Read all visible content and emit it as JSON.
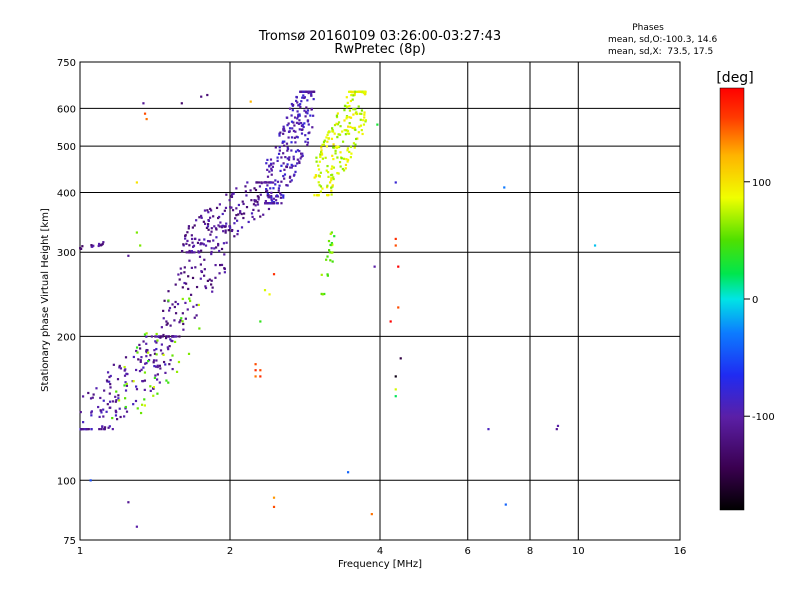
{
  "header": {
    "title_line1": "Tromsø 20160109 03:26:00-03:27:43",
    "title_line2": "RwPretec (8p)"
  },
  "stats": {
    "heading": "Phases",
    "line_o": "mean, sd,O:-100.3, 14.6",
    "line_x": "mean, sd,X:  73.5, 17.5"
  },
  "colorbar": {
    "unit_label": "[deg]",
    "ticks": [
      {
        "value": 100,
        "label": "100"
      },
      {
        "value": 0,
        "label": "0"
      },
      {
        "value": -100,
        "label": "-100"
      }
    ],
    "range": [
      -180,
      180
    ]
  },
  "chart_data": {
    "type": "scatter",
    "xlabel": "Frequency [MHz]",
    "ylabel": "Stationary phase Virtual Height [km]",
    "xscale": "log",
    "yscale": "log",
    "xlim": [
      1,
      16
    ],
    "ylim": [
      75,
      750
    ],
    "grid": true,
    "x_ticks": [
      1,
      2,
      4,
      6,
      8,
      10,
      16
    ],
    "y_ticks": [
      75,
      100,
      200,
      300,
      400,
      500,
      600,
      750
    ],
    "color_variable": "phase [deg]",
    "clusters": [
      {
        "comment": "O-mode low layer",
        "x_range": [
          1.0,
          1.55
        ],
        "y_range": [
          128,
          200
        ],
        "phase": -105,
        "n": 180
      },
      {
        "comment": "O-mode trace",
        "x_range": [
          1.45,
          2.0
        ],
        "y_range": [
          200,
          340
        ],
        "phase": -115,
        "n": 110
      },
      {
        "comment": "O-mode F trace",
        "x_range": [
          1.6,
          2.45
        ],
        "y_range": [
          300,
          420
        ],
        "phase": -110,
        "n": 170
      },
      {
        "comment": "O-mode cusp",
        "x_range": [
          2.35,
          2.95
        ],
        "y_range": [
          380,
          650
        ],
        "phase": -95,
        "n": 260
      },
      {
        "comment": "X-mode trace",
        "x_range": [
          2.95,
          3.75
        ],
        "y_range": [
          395,
          650
        ],
        "phase": 80,
        "n": 220
      },
      {
        "comment": "X-mode low",
        "x_range": [
          1.15,
          1.75
        ],
        "y_range": [
          135,
          240
        ],
        "phase": 60,
        "n": 45
      },
      {
        "comment": "X mode spur",
        "x_range": [
          3.05,
          3.25
        ],
        "y_range": [
          245,
          330
        ],
        "phase": 55,
        "n": 22
      },
      {
        "comment": "spread",
        "x_range": [
          1.0,
          1.12
        ],
        "y_range": [
          305,
          315
        ],
        "phase": -115,
        "n": 14
      }
    ],
    "points": [
      {
        "x": 1.35,
        "y": 585,
        "phase": 150
      },
      {
        "x": 1.36,
        "y": 570,
        "phase": 140
      },
      {
        "x": 1.34,
        "y": 615,
        "phase": -110
      },
      {
        "x": 1.6,
        "y": 615,
        "phase": -130
      },
      {
        "x": 1.75,
        "y": 635,
        "phase": -120
      },
      {
        "x": 1.8,
        "y": 640,
        "phase": -125
      },
      {
        "x": 2.2,
        "y": 620,
        "phase": 120
      },
      {
        "x": 3.95,
        "y": 555,
        "phase": 30
      },
      {
        "x": 4.3,
        "y": 420,
        "phase": -80
      },
      {
        "x": 4.3,
        "y": 320,
        "phase": 160
      },
      {
        "x": 4.3,
        "y": 310,
        "phase": 150
      },
      {
        "x": 4.35,
        "y": 280,
        "phase": 200
      },
      {
        "x": 4.35,
        "y": 230,
        "phase": 150
      },
      {
        "x": 4.2,
        "y": 215,
        "phase": 210
      },
      {
        "x": 4.4,
        "y": 180,
        "phase": -150
      },
      {
        "x": 4.3,
        "y": 165,
        "phase": -170
      },
      {
        "x": 4.3,
        "y": 155,
        "phase": 80
      },
      {
        "x": 4.3,
        "y": 150,
        "phase": 20
      },
      {
        "x": 7.1,
        "y": 410,
        "phase": -30
      },
      {
        "x": 10.8,
        "y": 310,
        "phase": -10
      },
      {
        "x": 3.9,
        "y": 280,
        "phase": -100
      },
      {
        "x": 2.25,
        "y": 175,
        "phase": 150
      },
      {
        "x": 2.25,
        "y": 170,
        "phase": 160
      },
      {
        "x": 2.25,
        "y": 165,
        "phase": 140
      },
      {
        "x": 2.3,
        "y": 170,
        "phase": 150
      },
      {
        "x": 2.3,
        "y": 165,
        "phase": 160
      },
      {
        "x": 2.45,
        "y": 92,
        "phase": 130
      },
      {
        "x": 2.45,
        "y": 88,
        "phase": 150
      },
      {
        "x": 3.85,
        "y": 85,
        "phase": 140
      },
      {
        "x": 3.45,
        "y": 104,
        "phase": -40
      },
      {
        "x": 1.25,
        "y": 90,
        "phase": -110
      },
      {
        "x": 1.3,
        "y": 80,
        "phase": -100
      },
      {
        "x": 1.05,
        "y": 100,
        "phase": -50
      },
      {
        "x": 6.6,
        "y": 128,
        "phase": -90
      },
      {
        "x": 7.15,
        "y": 89,
        "phase": -40
      },
      {
        "x": 9.05,
        "y": 128,
        "phase": -110
      },
      {
        "x": 9.1,
        "y": 130,
        "phase": -100
      },
      {
        "x": 1.3,
        "y": 420,
        "phase": 100
      },
      {
        "x": 1.3,
        "y": 330,
        "phase": 60
      },
      {
        "x": 1.32,
        "y": 310,
        "phase": 60
      },
      {
        "x": 1.25,
        "y": 295,
        "phase": -110
      },
      {
        "x": 2.35,
        "y": 250,
        "phase": 80
      },
      {
        "x": 2.4,
        "y": 245,
        "phase": 90
      },
      {
        "x": 2.45,
        "y": 270,
        "phase": 160
      },
      {
        "x": 2.3,
        "y": 215,
        "phase": 40
      }
    ]
  }
}
